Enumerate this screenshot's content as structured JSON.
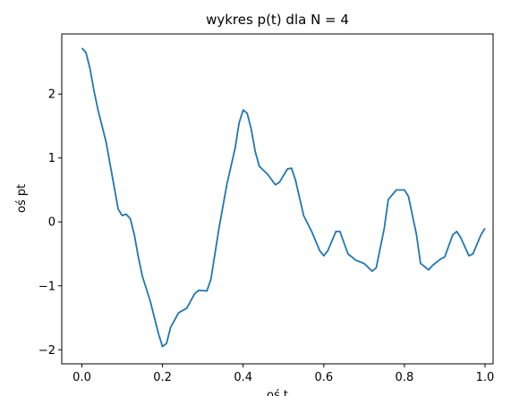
{
  "chart_data": {
    "type": "line",
    "title": "wykres p(t) dla N = 4",
    "x_label": "oś t",
    "y_label": "oś pt",
    "series": [
      {
        "name": "p(t)",
        "color": "#1f77b4",
        "x": [
          0,
          0.01,
          0.02,
          0.03,
          0.04,
          0.06,
          0.08,
          0.09,
          0.1,
          0.11,
          0.12,
          0.13,
          0.14,
          0.15,
          0.17,
          0.19,
          0.2,
          0.21,
          0.22,
          0.24,
          0.26,
          0.28,
          0.29,
          0.31,
          0.32,
          0.34,
          0.36,
          0.38,
          0.39,
          0.4,
          0.41,
          0.42,
          0.43,
          0.44,
          0.46,
          0.48,
          0.49,
          0.51,
          0.52,
          0.53,
          0.55,
          0.57,
          0.59,
          0.6,
          0.61,
          0.63,
          0.64,
          0.66,
          0.68,
          0.7,
          0.72,
          0.73,
          0.75,
          0.76,
          0.78,
          0.8,
          0.81,
          0.83,
          0.84,
          0.86,
          0.87,
          0.89,
          0.9,
          0.92,
          0.93,
          0.94,
          0.96,
          0.97,
          0.99,
          1.0
        ],
        "values": [
          2.72,
          2.65,
          2.4,
          2.05,
          1.75,
          1.25,
          0.55,
          0.2,
          0.1,
          0.12,
          0.05,
          -0.2,
          -0.55,
          -0.85,
          -1.25,
          -1.75,
          -1.95,
          -1.9,
          -1.65,
          -1.42,
          -1.35,
          -1.12,
          -1.07,
          -1.08,
          -0.9,
          -0.1,
          0.6,
          1.15,
          1.55,
          1.75,
          1.7,
          1.45,
          1.1,
          0.87,
          0.75,
          0.58,
          0.62,
          0.83,
          0.84,
          0.65,
          0.1,
          -0.15,
          -0.45,
          -0.53,
          -0.45,
          -0.15,
          -0.15,
          -0.5,
          -0.6,
          -0.65,
          -0.77,
          -0.72,
          -0.1,
          0.35,
          0.5,
          0.5,
          0.4,
          -0.2,
          -0.65,
          -0.75,
          -0.68,
          -0.58,
          -0.55,
          -0.2,
          -0.15,
          -0.25,
          -0.53,
          -0.5,
          -0.2,
          -0.1
        ]
      }
    ],
    "xlim": [
      -0.05,
      1.02
    ],
    "xticks": [
      {
        "value": 0,
        "label": "0.0"
      },
      {
        "value": 0.2,
        "label": "0.2"
      },
      {
        "value": 0.4,
        "label": "0.4"
      },
      {
        "value": 0.6,
        "label": "0.6"
      },
      {
        "value": 0.8,
        "label": "0.8"
      },
      {
        "value": 1,
        "label": "1.0"
      }
    ],
    "ylim": [
      -2.22,
      2.94
    ],
    "yticks": [
      {
        "value": -2,
        "label": "−2"
      },
      {
        "value": -1,
        "label": "−1"
      },
      0,
      1,
      2
    ]
  }
}
